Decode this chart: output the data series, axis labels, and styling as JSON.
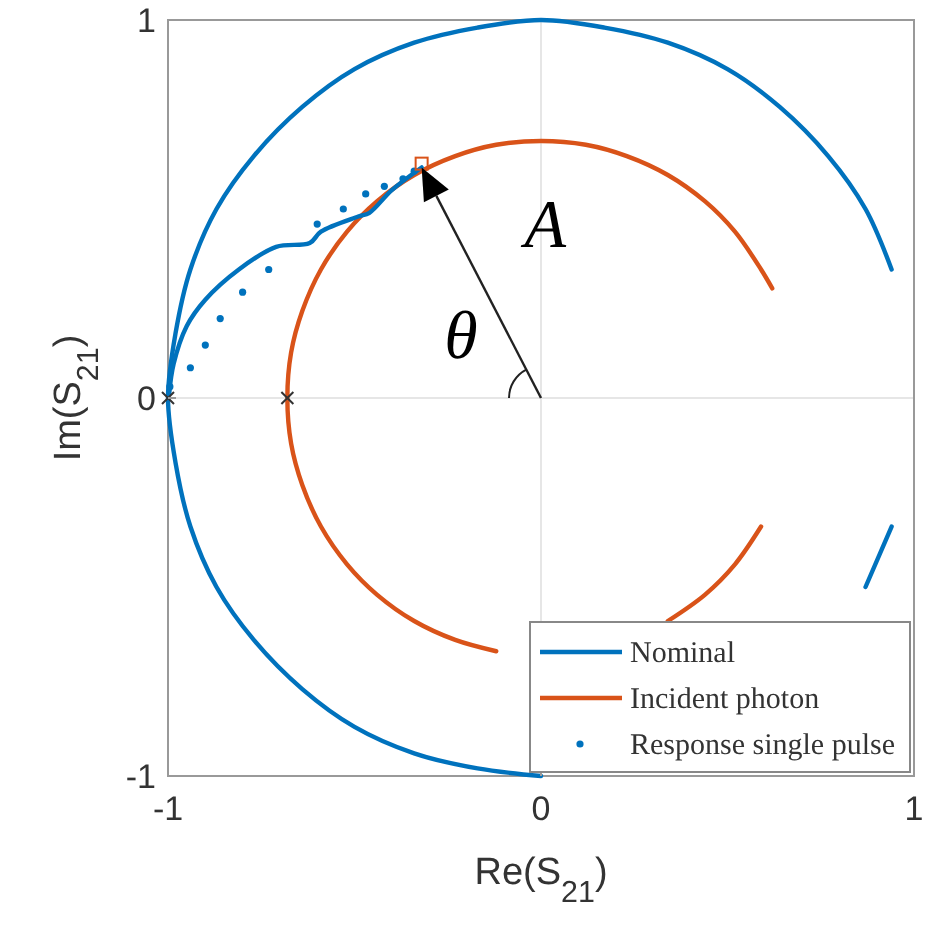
{
  "chart_data": {
    "type": "line",
    "xlabel": "Re(S$_{21}$)",
    "ylabel": "Im(S$_{21}$)",
    "xlim": [
      -1,
      1
    ],
    "ylim": [
      -1,
      1
    ],
    "xticks": [
      -1,
      0,
      1
    ],
    "yticks": [
      -1,
      0,
      1
    ],
    "grid": true,
    "legend": "bottom right",
    "annotations": [
      "A",
      "θ"
    ],
    "series": [
      {
        "name": "Nominal",
        "color": "#0072bd",
        "x": [
          0.94,
          0.87,
          0.77,
          0.64,
          0.5,
          0.34,
          0.17,
          0,
          -0.17,
          -0.34,
          -0.5,
          -0.64,
          -0.77,
          -0.87,
          -0.94,
          -0.98,
          -1,
          -0.98,
          -0.94,
          -0.87,
          -0.77,
          -0.64,
          -0.5,
          -0.34,
          -0.17,
          0,
          0.17,
          0.34,
          0.5,
          0.64,
          0.77,
          0.87,
          0.94
        ],
        "values": [
          0.34,
          0.5,
          0.64,
          0.77,
          0.87,
          0.94,
          0.98,
          1,
          0.98,
          0.94,
          0.87,
          0.77,
          0.64,
          0.5,
          0.34,
          0.17,
          0,
          -0.17,
          -0.34,
          -0.5,
          -0.64,
          -0.77,
          -0.87,
          -0.94,
          -0.98,
          -1,
          null,
          null,
          null,
          null,
          null,
          -0.5,
          -0.34
        ]
      },
      {
        "name": "Incident photon",
        "color": "#d95319",
        "x": [
          0.62,
          0.59,
          0.52,
          0.44,
          0.34,
          0.23,
          0.12,
          0,
          -0.12,
          -0.23,
          -0.34,
          -0.44,
          -0.52,
          -0.59,
          -0.64,
          -0.67,
          -0.68,
          -0.67,
          -0.64,
          -0.59,
          -0.52,
          -0.44,
          -0.34,
          -0.23,
          -0.12,
          0,
          0.12,
          0.23,
          0.34,
          0.44,
          0.52,
          0.59
        ],
        "values": [
          0.29,
          0.34,
          0.44,
          0.52,
          0.59,
          0.64,
          0.67,
          0.68,
          0.67,
          0.64,
          0.59,
          0.52,
          0.44,
          0.34,
          0.23,
          0.12,
          0,
          -0.12,
          -0.23,
          -0.34,
          -0.44,
          -0.52,
          -0.59,
          -0.64,
          -0.67,
          null,
          null,
          null,
          -0.59,
          -0.52,
          -0.44,
          -0.34
        ]
      },
      {
        "color": "#0072bd",
        "x": [
          -0.997,
          -0.985,
          -0.95,
          -0.9,
          -0.81,
          -0.71,
          -0.62,
          -0.59,
          -0.49,
          -0.46,
          -0.4,
          -0.32
        ],
        "values": [
          0.01,
          0.09,
          0.19,
          0.26,
          0.34,
          0.4,
          0.41,
          0.44,
          0.48,
          0.49,
          0.55,
          0.61
        ]
      },
      {
        "name": "Response single pulse",
        "type": "scatter",
        "marker": "circle",
        "color": "#0072bd",
        "x": [
          -0.995,
          -0.94,
          -0.9,
          -0.86,
          -0.8,
          -0.73,
          -0.6,
          -0.53,
          -0.47,
          -0.42,
          -0.37,
          -0.34
        ],
        "values": [
          0.03,
          0.08,
          0.14,
          0.21,
          0.28,
          0.34,
          0.46,
          0.5,
          0.54,
          0.56,
          0.58,
          0.6
        ]
      },
      {
        "type": "scatter",
        "marker": "cross",
        "color": "#333333",
        "x": [
          -1,
          -0.68
        ],
        "values": [
          0,
          0
        ]
      },
      {
        "type": "scatter",
        "marker": "square",
        "color": "#d95319",
        "x": [
          -0.32
        ],
        "values": [
          0.62
        ]
      }
    ]
  }
}
